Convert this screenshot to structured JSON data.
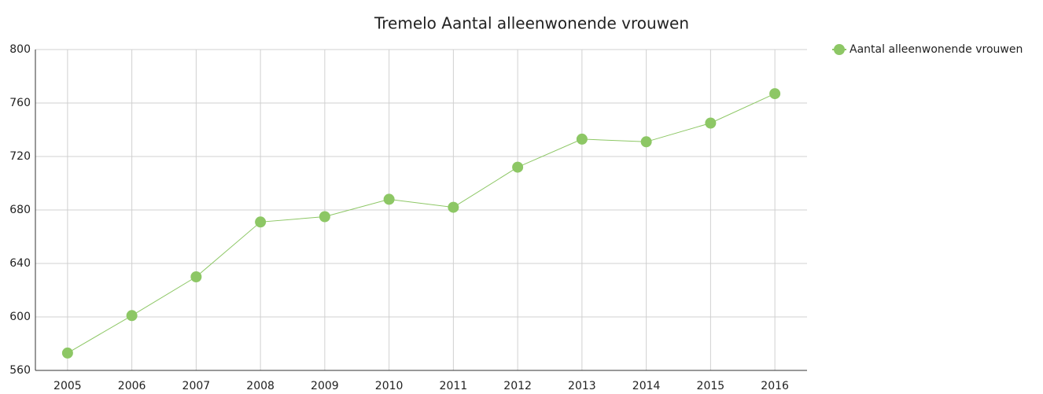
{
  "chart_data": {
    "type": "line",
    "title": "Tremelo  Aantal alleenwonende vrouwen",
    "categories": [
      "2005",
      "2006",
      "2007",
      "2008",
      "2009",
      "2010",
      "2011",
      "2012",
      "2013",
      "2014",
      "2015",
      "2016"
    ],
    "series": [
      {
        "name": "Aantal alleenwonende vrouwen",
        "color": "#8dc765",
        "values": [
          573,
          601,
          630,
          671,
          675,
          688,
          682,
          712,
          733,
          731,
          745,
          767
        ]
      }
    ],
    "ylim": [
      560,
      800
    ],
    "yticks": [
      560,
      600,
      640,
      680,
      720,
      760,
      800
    ],
    "grid": true,
    "legend": "top-right"
  }
}
